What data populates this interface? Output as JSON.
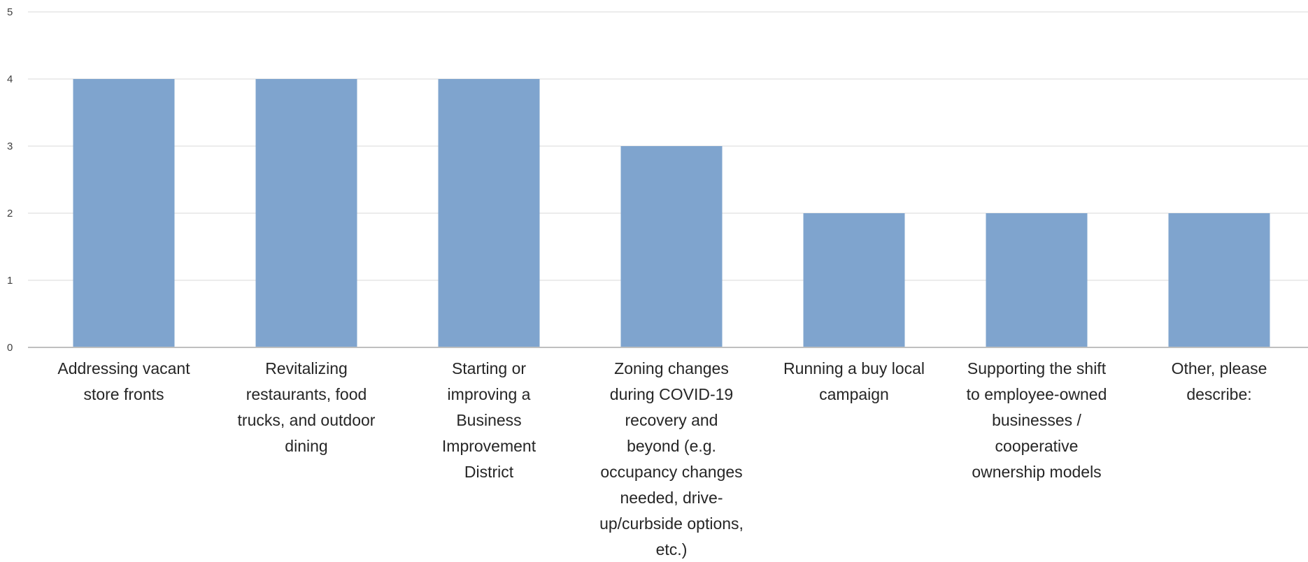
{
  "chart_data": {
    "type": "bar",
    "categories": [
      [
        "Addressing vacant",
        "store fronts"
      ],
      [
        "Revitalizing",
        "restaurants, food",
        "trucks, and outdoor",
        "dining"
      ],
      [
        "Starting or",
        "improving a",
        "Business",
        "Improvement",
        "District"
      ],
      [
        "Zoning changes",
        "during COVID-19",
        "recovery and",
        "beyond (e.g.",
        "occupancy changes",
        "needed, drive-",
        "up/curbside options,",
        "etc.)"
      ],
      [
        "Running a buy local",
        "campaign"
      ],
      [
        "Supporting the shift",
        "to employee-owned",
        "businesses /",
        "cooperative",
        "ownership models"
      ],
      [
        "Other, please",
        "describe:"
      ]
    ],
    "values": [
      4,
      4,
      4,
      3,
      2,
      2,
      2
    ],
    "ylim": [
      0,
      5
    ],
    "yticks": [
      0,
      1,
      2,
      3,
      4,
      5
    ],
    "grid": true,
    "legend": "none",
    "title": "",
    "xlabel": "",
    "ylabel": "",
    "colors": {
      "bar": "#7fa4ce",
      "grid": "#e6e6e6",
      "axis": "#bfbfbf"
    }
  }
}
